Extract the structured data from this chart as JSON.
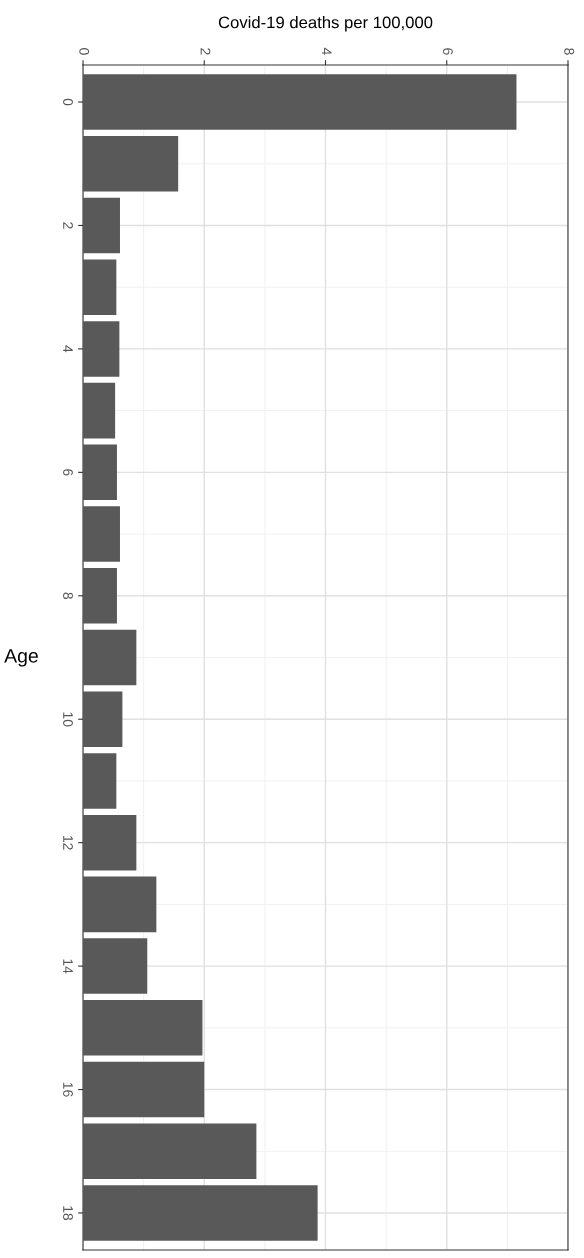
{
  "chart_data": {
    "type": "bar",
    "orientation": "horizontal",
    "xlabel": "Covid-19 deaths per 100,000",
    "ylabel": "Age",
    "categories": [
      "0",
      null,
      "2",
      null,
      "4",
      null,
      "6",
      null,
      "8",
      null,
      "10",
      null,
      "12",
      null,
      "14",
      null,
      "16",
      null,
      "18"
    ],
    "values": [
      7.15,
      1.57,
      0.61,
      0.55,
      0.6,
      0.53,
      0.56,
      0.61,
      0.56,
      0.88,
      0.65,
      0.55,
      0.88,
      1.21,
      1.06,
      1.97,
      2.0,
      2.86,
      3.87
    ],
    "color": "#595959",
    "xlim": [
      0,
      8
    ],
    "xticks": [
      0,
      2,
      4,
      6,
      8
    ],
    "grid": true
  }
}
